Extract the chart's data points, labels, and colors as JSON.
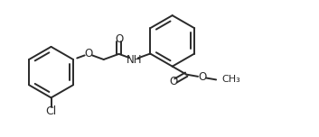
{
  "bg_color": "#ffffff",
  "line_color": "#2a2a2a",
  "text_color": "#2a2a2a",
  "line_width": 1.4,
  "font_size": 8.5,
  "figsize": [
    3.53,
    1.52
  ],
  "dpi": 100,
  "xlim": [
    0.0,
    10.2
  ],
  "ylim": [
    0.2,
    4.2
  ]
}
